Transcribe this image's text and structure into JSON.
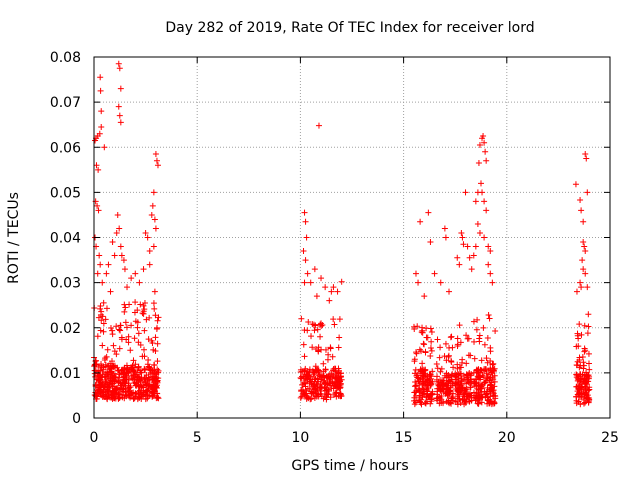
{
  "chart_data": {
    "type": "scatter",
    "title": "Day 282 of 2019, Rate Of TEC Index for receiver lord",
    "xlabel": "GPS time / hours",
    "ylabel": "ROTI / TECUs",
    "xlim": [
      0,
      25
    ],
    "ylim": [
      0,
      0.08
    ],
    "xticks": [
      "0",
      "5",
      "10",
      "15",
      "20",
      "25"
    ],
    "yticks": [
      "0",
      "0.01",
      "0.02",
      "0.03",
      "0.04",
      "0.05",
      "0.06",
      "0.07",
      "0.08"
    ],
    "grid": true,
    "marker": "plus",
    "color": "#ff0000",
    "series": [
      {
        "points": [
          [
            0.05,
            0.0615
          ],
          [
            0.1,
            0.062
          ],
          [
            0.18,
            0.0625
          ],
          [
            0.28,
            0.063
          ],
          [
            0.3,
            0.0755
          ],
          [
            0.32,
            0.0725
          ],
          [
            0.35,
            0.068
          ],
          [
            0.12,
            0.056
          ],
          [
            0.2,
            0.055
          ],
          [
            0.08,
            0.048
          ],
          [
            0.15,
            0.047
          ],
          [
            0.22,
            0.046
          ],
          [
            0.05,
            0.04
          ],
          [
            0.1,
            0.038
          ],
          [
            0.25,
            0.036
          ],
          [
            0.3,
            0.034
          ],
          [
            0.18,
            0.032
          ],
          [
            0.4,
            0.03
          ],
          [
            0.35,
            0.0645
          ],
          [
            0.5,
            0.06
          ],
          [
            1.2,
            0.0785
          ],
          [
            1.25,
            0.0775
          ],
          [
            1.3,
            0.073
          ],
          [
            1.2,
            0.069
          ],
          [
            1.25,
            0.067
          ],
          [
            1.3,
            0.0655
          ],
          [
            1.15,
            0.045
          ],
          [
            1.22,
            0.042
          ],
          [
            1.1,
            0.041
          ],
          [
            1.3,
            0.038
          ],
          [
            1.35,
            0.036
          ],
          [
            1.45,
            0.035
          ],
          [
            1.5,
            0.033
          ],
          [
            0.9,
            0.039
          ],
          [
            1.0,
            0.036
          ],
          [
            0.7,
            0.034
          ],
          [
            0.6,
            0.032
          ],
          [
            1.8,
            0.031
          ],
          [
            2.0,
            0.032
          ],
          [
            2.2,
            0.03
          ],
          [
            2.5,
            0.041
          ],
          [
            2.6,
            0.04
          ],
          [
            2.7,
            0.037
          ],
          [
            2.8,
            0.045
          ],
          [
            2.85,
            0.047
          ],
          [
            2.9,
            0.05
          ],
          [
            3.0,
            0.0585
          ],
          [
            3.05,
            0.057
          ],
          [
            3.1,
            0.056
          ],
          [
            2.95,
            0.044
          ],
          [
            3.0,
            0.042
          ],
          [
            2.9,
            0.038
          ],
          [
            2.7,
            0.034
          ],
          [
            2.4,
            0.033
          ],
          [
            1.6,
            0.029
          ],
          [
            0.8,
            0.028
          ],
          [
            2.95,
            0.028
          ],
          [
            10.2,
            0.0455
          ],
          [
            10.25,
            0.0435
          ],
          [
            10.3,
            0.04
          ],
          [
            10.15,
            0.037
          ],
          [
            10.25,
            0.035
          ],
          [
            10.35,
            0.032
          ],
          [
            10.2,
            0.03
          ],
          [
            10.5,
            0.03
          ],
          [
            10.7,
            0.033
          ],
          [
            10.9,
            0.0648
          ],
          [
            11.0,
            0.031
          ],
          [
            11.2,
            0.029
          ],
          [
            11.5,
            0.028
          ],
          [
            11.6,
            0.029
          ],
          [
            12.0,
            0.0302
          ],
          [
            11.8,
            0.028
          ],
          [
            11.4,
            0.026
          ],
          [
            10.8,
            0.027
          ],
          [
            15.6,
            0.032
          ],
          [
            15.7,
            0.03
          ],
          [
            15.8,
            0.0435
          ],
          [
            16.0,
            0.027
          ],
          [
            16.2,
            0.0455
          ],
          [
            16.3,
            0.039
          ],
          [
            16.5,
            0.032
          ],
          [
            16.8,
            0.03
          ],
          [
            17.0,
            0.042
          ],
          [
            17.05,
            0.04
          ],
          [
            17.2,
            0.028
          ],
          [
            17.6,
            0.0355
          ],
          [
            17.7,
            0.034
          ],
          [
            17.8,
            0.041
          ],
          [
            17.85,
            0.04
          ],
          [
            17.9,
            0.0385
          ],
          [
            18.0,
            0.05
          ],
          [
            18.1,
            0.038
          ],
          [
            18.2,
            0.0355
          ],
          [
            18.3,
            0.033
          ],
          [
            18.5,
            0.048
          ],
          [
            18.6,
            0.05
          ],
          [
            18.65,
            0.0565
          ],
          [
            18.7,
            0.0605
          ],
          [
            18.8,
            0.062
          ],
          [
            18.85,
            0.0625
          ],
          [
            18.9,
            0.061
          ],
          [
            18.95,
            0.059
          ],
          [
            19.0,
            0.057
          ],
          [
            18.75,
            0.052
          ],
          [
            18.8,
            0.05
          ],
          [
            18.9,
            0.048
          ],
          [
            19.0,
            0.046
          ],
          [
            18.6,
            0.043
          ],
          [
            18.7,
            0.041
          ],
          [
            18.9,
            0.04
          ],
          [
            19.1,
            0.038
          ],
          [
            19.2,
            0.037
          ],
          [
            18.5,
            0.038
          ],
          [
            18.4,
            0.036
          ],
          [
            19.1,
            0.034
          ],
          [
            19.2,
            0.032
          ],
          [
            19.3,
            0.03
          ],
          [
            23.35,
            0.0518
          ],
          [
            23.55,
            0.0483
          ],
          [
            23.6,
            0.046
          ],
          [
            23.7,
            0.0435
          ],
          [
            23.8,
            0.0585
          ],
          [
            23.85,
            0.0575
          ],
          [
            23.9,
            0.05
          ],
          [
            23.7,
            0.039
          ],
          [
            23.75,
            0.038
          ],
          [
            23.8,
            0.037
          ],
          [
            23.65,
            0.035
          ],
          [
            23.7,
            0.033
          ],
          [
            23.8,
            0.032
          ],
          [
            23.55,
            0.03
          ],
          [
            23.6,
            0.029
          ],
          [
            23.9,
            0.029
          ],
          [
            23.4,
            0.028
          ],
          [
            23.95,
            0.023
          ]
        ],
        "clusters": [
          {
            "x_range": [
              0.0,
              3.15
            ],
            "y_floor": 0.004,
            "y_core": 0.012,
            "y_spread": 0.022,
            "count": 520
          },
          {
            "x_range": [
              10.0,
              12.0
            ],
            "y_floor": 0.004,
            "y_core": 0.011,
            "y_spread": 0.018,
            "count": 260
          },
          {
            "x_range": [
              15.5,
              16.4
            ],
            "y_floor": 0.003,
            "y_core": 0.011,
            "y_spread": 0.018,
            "count": 140
          },
          {
            "x_range": [
              16.6,
              17.4
            ],
            "y_floor": 0.003,
            "y_core": 0.01,
            "y_spread": 0.016,
            "count": 110
          },
          {
            "x_range": [
              17.5,
              18.3
            ],
            "y_floor": 0.003,
            "y_core": 0.01,
            "y_spread": 0.018,
            "count": 120
          },
          {
            "x_range": [
              18.4,
              19.45
            ],
            "y_floor": 0.003,
            "y_core": 0.011,
            "y_spread": 0.02,
            "count": 170
          },
          {
            "x_range": [
              23.35,
              24.0
            ],
            "y_floor": 0.003,
            "y_core": 0.01,
            "y_spread": 0.018,
            "count": 120
          }
        ]
      }
    ]
  }
}
